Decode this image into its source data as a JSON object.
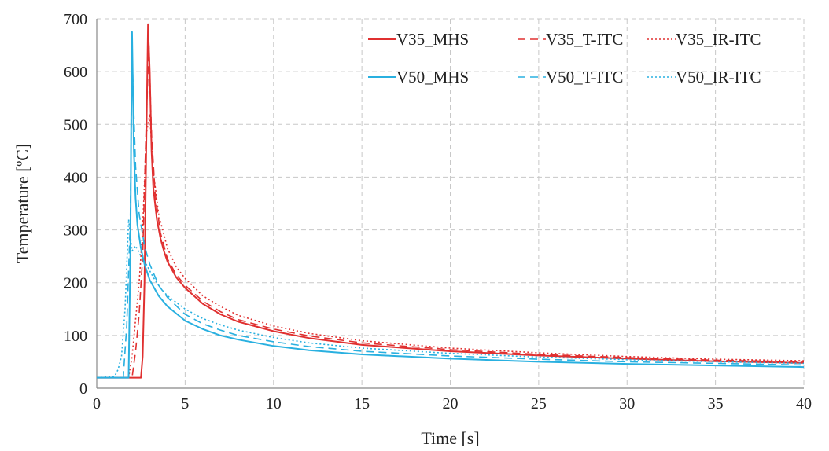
{
  "chart_data": {
    "type": "line",
    "title": "",
    "xlabel": "Time [s]",
    "ylabel": "Temperature [ºC]",
    "xlim": [
      0,
      40
    ],
    "ylim": [
      0,
      700
    ],
    "xticks": [
      0,
      5,
      10,
      15,
      20,
      25,
      30,
      35,
      40
    ],
    "yticks": [
      0,
      100,
      200,
      300,
      400,
      500,
      600,
      700
    ],
    "grid": true,
    "legend_position": "top-right",
    "series": [
      {
        "name": "V35_MHS",
        "color": "#e03030",
        "style": "solid",
        "x": [
          0,
          2.5,
          2.6,
          2.7,
          2.8,
          2.9,
          3.0,
          3.1,
          3.2,
          3.4,
          3.6,
          3.8,
          4.0,
          4.5,
          5,
          6,
          7,
          8,
          10,
          12,
          15,
          20,
          25,
          30,
          35,
          40
        ],
        "y": [
          20,
          20,
          60,
          200,
          450,
          690,
          600,
          450,
          380,
          320,
          285,
          260,
          240,
          210,
          190,
          160,
          140,
          126,
          108,
          95,
          82,
          70,
          62,
          56,
          51,
          48
        ]
      },
      {
        "name": "V35_T-ITC",
        "color": "#e03030",
        "style": "dashed",
        "x": [
          0,
          2.0,
          2.2,
          2.4,
          2.6,
          2.8,
          2.95,
          3.1,
          3.3,
          3.6,
          4.0,
          4.5,
          5,
          6,
          7,
          8,
          10,
          12,
          15,
          20,
          25,
          30,
          35,
          40
        ],
        "y": [
          20,
          20,
          70,
          140,
          250,
          500,
          650,
          480,
          370,
          295,
          245,
          215,
          195,
          165,
          145,
          130,
          112,
          99,
          86,
          73,
          64,
          58,
          53,
          50
        ]
      },
      {
        "name": "V35_IR-ITC",
        "color": "#e03030",
        "style": "dotted",
        "x": [
          0,
          1.8,
          2.0,
          2.2,
          2.4,
          2.6,
          2.8,
          3.0,
          3.2,
          3.5,
          4.0,
          4.5,
          5,
          6,
          7,
          8,
          10,
          12,
          15,
          20,
          25,
          30,
          35,
          40
        ],
        "y": [
          20,
          20,
          60,
          130,
          200,
          300,
          480,
          520,
          410,
          330,
          265,
          230,
          208,
          175,
          155,
          138,
          118,
          104,
          90,
          76,
          67,
          60,
          55,
          52
        ]
      },
      {
        "name": "V50_MHS",
        "color": "#29b0e0",
        "style": "solid",
        "x": [
          0,
          1.8,
          1.9,
          1.95,
          2.0,
          2.05,
          2.1,
          2.2,
          2.3,
          2.5,
          2.7,
          3.0,
          3.5,
          4.0,
          5,
          6,
          7,
          8,
          10,
          12,
          15,
          20,
          25,
          30,
          35,
          40
        ],
        "y": [
          20,
          20,
          250,
          500,
          675,
          560,
          450,
          360,
          310,
          265,
          235,
          205,
          175,
          155,
          128,
          112,
          100,
          92,
          80,
          72,
          64,
          56,
          50,
          46,
          43,
          40
        ]
      },
      {
        "name": "V50_T-ITC",
        "color": "#29b0e0",
        "style": "dashed",
        "x": [
          0,
          1.5,
          1.7,
          1.9,
          2.0,
          2.1,
          2.2,
          2.4,
          2.7,
          3.0,
          3.5,
          4.0,
          5,
          6,
          7,
          8,
          10,
          12,
          15,
          20,
          25,
          30,
          35,
          40
        ],
        "y": [
          20,
          20,
          120,
          320,
          640,
          520,
          420,
          330,
          270,
          235,
          195,
          172,
          140,
          122,
          110,
          100,
          88,
          79,
          70,
          61,
          55,
          50,
          47,
          44
        ]
      },
      {
        "name": "V50_IR-ITC",
        "color": "#29b0e0",
        "style": "dotted",
        "x": [
          0,
          1.0,
          1.2,
          1.4,
          1.6,
          1.8,
          2.0,
          2.2,
          2.5,
          2.8,
          3.2,
          3.6,
          4.0,
          5,
          6,
          7,
          8,
          10,
          12,
          15,
          20,
          25,
          30,
          35,
          40
        ],
        "y": [
          20,
          22,
          35,
          60,
          150,
          320,
          260,
          270,
          250,
          235,
          210,
          190,
          175,
          150,
          132,
          120,
          110,
          96,
          86,
          76,
          66,
          59,
          54,
          50,
          47
        ]
      }
    ]
  }
}
